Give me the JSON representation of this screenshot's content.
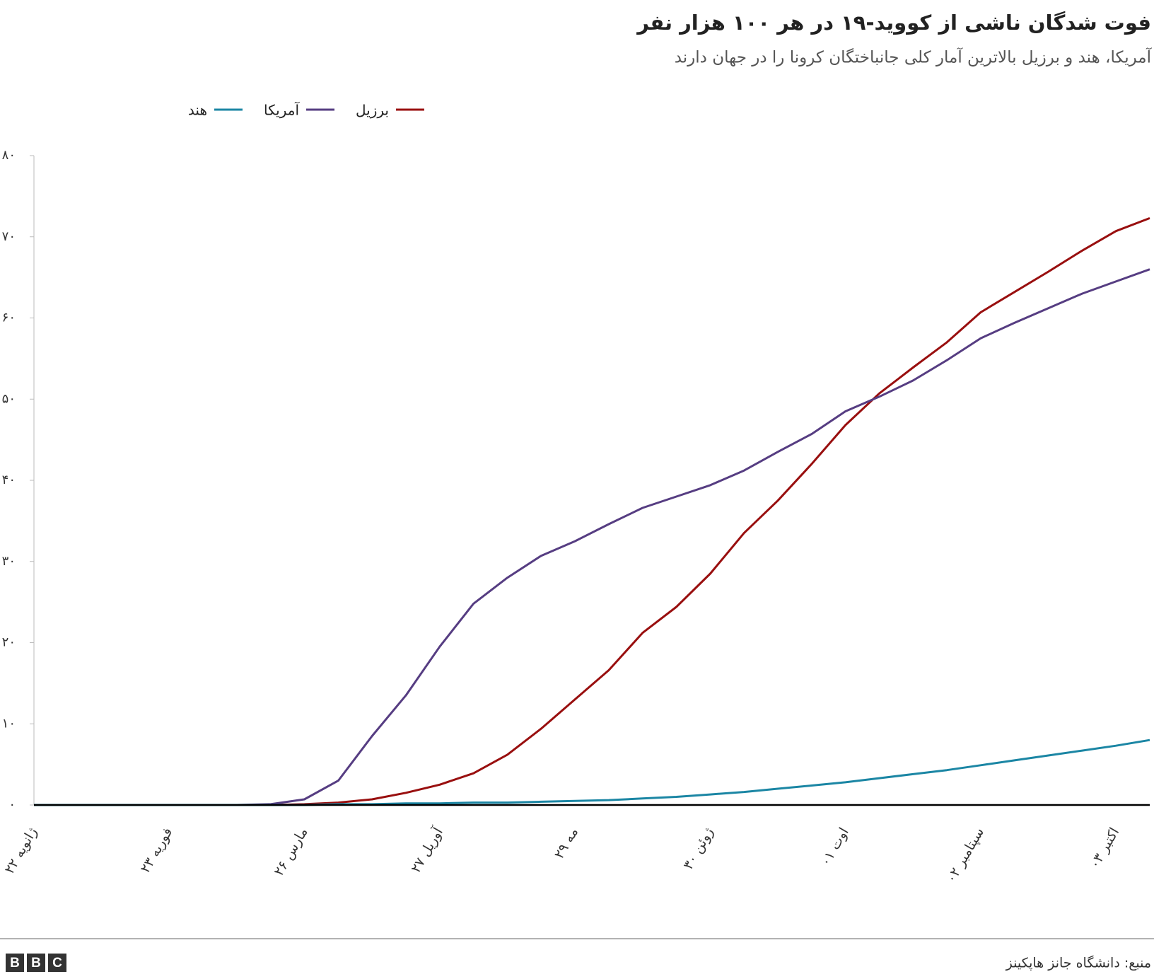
{
  "chart_data": {
    "type": "line",
    "title": "فوت شدگان ناشی از کووید-۱۹ در هر ۱۰۰ هزار نفر",
    "subtitle": "آمریکا، هند و برزیل بالاترین آمار کلی جانباختگان کرونا را در جهان دارند",
    "source": "منبع: دانشگاه جانز هاپکینز",
    "logo": [
      "B",
      "B",
      "C"
    ],
    "categories": [
      "۲۲ ژانویه",
      null,
      null,
      null,
      "۲۳ فوریه",
      null,
      null,
      null,
      "۲۶ مارس",
      null,
      null,
      null,
      "۲۷ آوریل",
      null,
      null,
      null,
      "۲۹ مه",
      null,
      null,
      null,
      "۳۰ ژوئن",
      null,
      null,
      null,
      "۰۱ اوت",
      null,
      null,
      null,
      "۰۲ سپتامبر",
      null,
      null,
      null,
      "۰۳ اکتبر",
      null
    ],
    "series": [
      {
        "name": "برزیل",
        "color": "#990f0f",
        "values": [
          0,
          0,
          0,
          0,
          0,
          0,
          0,
          0,
          0.1,
          0.3,
          0.7,
          1.5,
          2.5,
          3.9,
          6.2,
          9.4,
          13,
          16.6,
          21.2,
          24.4,
          28.5,
          33.5,
          37.5,
          42,
          46.8,
          50.7,
          53.9,
          57,
          60.7,
          63.2,
          65.7,
          68.3,
          70.7,
          72.3
        ]
      },
      {
        "name": "آمریکا",
        "color": "#563d82",
        "values": [
          0,
          0,
          0,
          0,
          0,
          0,
          0,
          0.1,
          0.7,
          3,
          8.5,
          13.5,
          19.5,
          24.8,
          28,
          30.7,
          32.5,
          34.6,
          36.6,
          38,
          39.4,
          41.2,
          43.5,
          45.7,
          48.5,
          50.3,
          52.3,
          54.8,
          57.5,
          59.4,
          61.2,
          63,
          64.5,
          66
        ]
      },
      {
        "name": "هند",
        "color": "#1b86a4",
        "values": [
          0,
          0,
          0,
          0,
          0,
          0,
          0,
          0,
          0,
          0.1,
          0.1,
          0.2,
          0.2,
          0.3,
          0.3,
          0.4,
          0.5,
          0.6,
          0.8,
          1,
          1.3,
          1.6,
          2,
          2.4,
          2.8,
          3.3,
          3.8,
          4.3,
          4.9,
          5.5,
          6.1,
          6.7,
          7.3,
          8
        ]
      }
    ],
    "ylim": [
      0,
      80
    ],
    "yticks": [
      {
        "value": 0,
        "label": "۰"
      },
      {
        "value": 10,
        "label": "۱۰"
      },
      {
        "value": 20,
        "label": "۲۰"
      },
      {
        "value": 30,
        "label": "۳۰"
      },
      {
        "value": 40,
        "label": "۴۰"
      },
      {
        "value": 50,
        "label": "۵۰"
      },
      {
        "value": 60,
        "label": "۶۰"
      },
      {
        "value": 70,
        "label": "۷۰"
      },
      {
        "value": 80,
        "label": "۸۰"
      }
    ],
    "grid": false,
    "legend": "top-left"
  }
}
